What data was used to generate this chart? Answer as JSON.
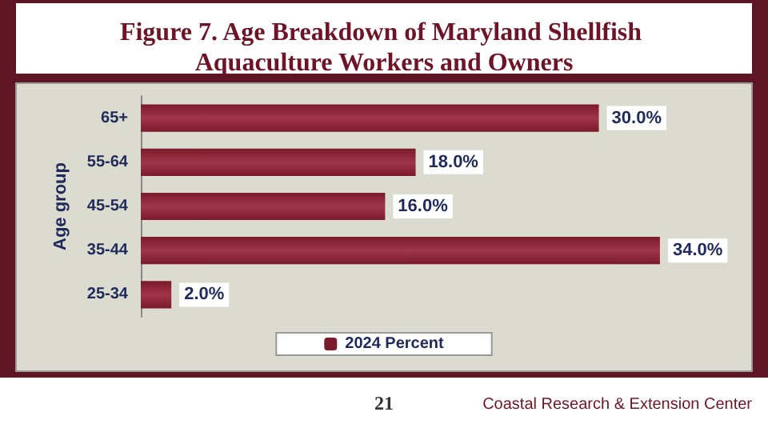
{
  "chart_data": {
    "type": "bar",
    "orientation": "horizontal",
    "title": "Figure 7. Age Breakdown of Maryland Shellfish Aquaculture Workers and Owners",
    "ylabel": "Age group",
    "categories": [
      "65+",
      "55-64",
      "45-54",
      "35-44",
      "25-34"
    ],
    "series": [
      {
        "name": "2024 Percent",
        "color": "#7a1a2c",
        "values": [
          30,
          18,
          16,
          34,
          2
        ],
        "value_labels": [
          "30.0%",
          "18.0%",
          "16.0%",
          "34.0%",
          "2.0%"
        ]
      }
    ],
    "legend": "bottom",
    "grid": false,
    "annotations": [
      "21",
      "Coastal Research & Extension Center"
    ]
  }
}
